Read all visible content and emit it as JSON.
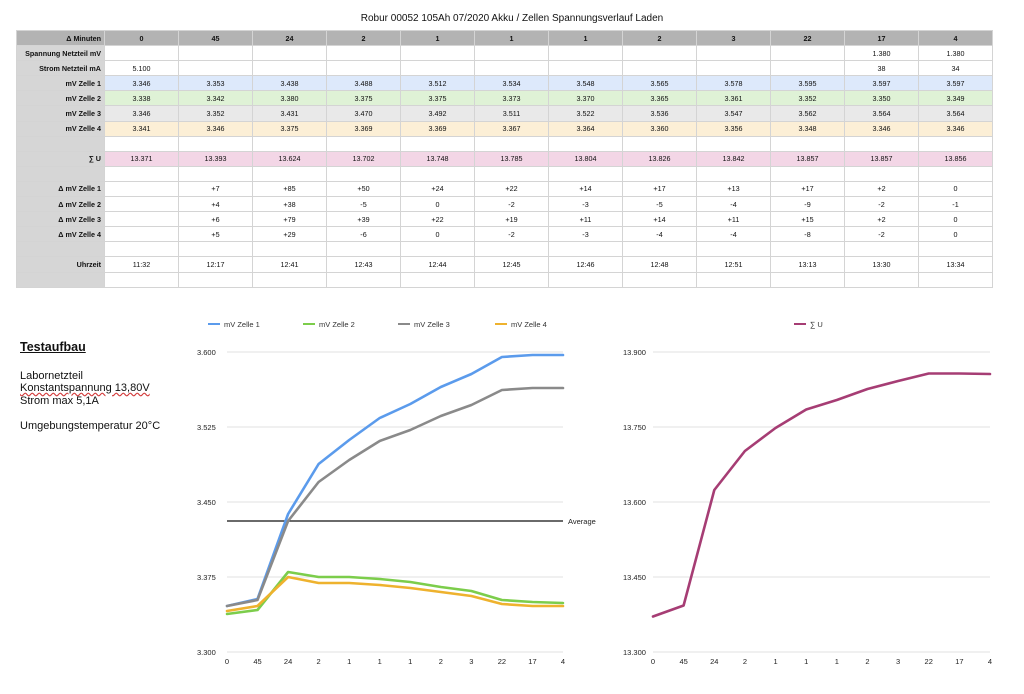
{
  "title": "Robur 00052 105Ah 07/2020 Akku / Zellen Spannungsverlauf Laden",
  "table": {
    "header_label": "Δ Minuten",
    "columns": [
      "0",
      "45",
      "24",
      "2",
      "1",
      "1",
      "1",
      "2",
      "3",
      "22",
      "17",
      "4"
    ],
    "rows": [
      {
        "label": "Spannung Netzteil mV",
        "cls": "",
        "cells": [
          "",
          "",
          "",
          "",
          "",
          "",
          "",
          "",
          "",
          "",
          "1.380",
          "1.380"
        ]
      },
      {
        "label": "Strom Netzteil mA",
        "cls": "",
        "cells": [
          "5.100",
          "",
          "",
          "",
          "",
          "",
          "",
          "",
          "",
          "",
          "38",
          "34"
        ]
      },
      {
        "label": "mV Zelle 1",
        "cls": "z1",
        "cells": [
          "3.346",
          "3.353",
          "3.438",
          "3.488",
          "3.512",
          "3.534",
          "3.548",
          "3.565",
          "3.578",
          "3.595",
          "3.597",
          "3.597"
        ]
      },
      {
        "label": "mV Zelle 2",
        "cls": "z2",
        "cells": [
          "3.338",
          "3.342",
          "3.380",
          "3.375",
          "3.375",
          "3.373",
          "3.370",
          "3.365",
          "3.361",
          "3.352",
          "3.350",
          "3.349"
        ]
      },
      {
        "label": "mV Zelle 3",
        "cls": "z3",
        "cells": [
          "3.346",
          "3.352",
          "3.431",
          "3.470",
          "3.492",
          "3.511",
          "3.522",
          "3.536",
          "3.547",
          "3.562",
          "3.564",
          "3.564"
        ]
      },
      {
        "label": "mV Zelle 4",
        "cls": "z4",
        "cells": [
          "3.341",
          "3.346",
          "3.375",
          "3.369",
          "3.369",
          "3.367",
          "3.364",
          "3.360",
          "3.356",
          "3.348",
          "3.346",
          "3.346"
        ]
      },
      {
        "label": "",
        "cls": "blank",
        "cells": [
          "",
          "",
          "",
          "",
          "",
          "",
          "",
          "",
          "",
          "",
          "",
          ""
        ]
      },
      {
        "label": "∑ U",
        "cls": "sum",
        "cells": [
          "13.371",
          "13.393",
          "13.624",
          "13.702",
          "13.748",
          "13.785",
          "13.804",
          "13.826",
          "13.842",
          "13.857",
          "13.857",
          "13.856"
        ]
      },
      {
        "label": "",
        "cls": "blank",
        "cells": [
          "",
          "",
          "",
          "",
          "",
          "",
          "",
          "",
          "",
          "",
          "",
          ""
        ]
      },
      {
        "label": "Δ mV Zelle 1",
        "cls": "",
        "cells": [
          "",
          "+7",
          "+85",
          "+50",
          "+24",
          "+22",
          "+14",
          "+17",
          "+13",
          "+17",
          "+2",
          "0"
        ]
      },
      {
        "label": "Δ mV Zelle 2",
        "cls": "",
        "cells": [
          "",
          "+4",
          "+38",
          "-5",
          "0",
          "-2",
          "-3",
          "-5",
          "-4",
          "-9",
          "-2",
          "-1"
        ]
      },
      {
        "label": "Δ mV Zelle 3",
        "cls": "",
        "cells": [
          "",
          "+6",
          "+79",
          "+39",
          "+22",
          "+19",
          "+11",
          "+14",
          "+11",
          "+15",
          "+2",
          "0"
        ]
      },
      {
        "label": "Δ mV Zelle 4",
        "cls": "",
        "cells": [
          "",
          "+5",
          "+29",
          "-6",
          "0",
          "-2",
          "-3",
          "-4",
          "-4",
          "-8",
          "-2",
          "0"
        ]
      },
      {
        "label": "",
        "cls": "blank",
        "cells": [
          "",
          "",
          "",
          "",
          "",
          "",
          "",
          "",
          "",
          "",
          "",
          ""
        ]
      },
      {
        "label": "Uhrzeit",
        "cls": "",
        "cells": [
          "11:32",
          "12:17",
          "12:41",
          "12:43",
          "12:44",
          "12:45",
          "12:46",
          "12:48",
          "12:51",
          "13:13",
          "13:30",
          "13:34"
        ]
      },
      {
        "label": "",
        "cls": "blank",
        "cells": [
          "",
          "",
          "",
          "",
          "",
          "",
          "",
          "",
          "",
          "",
          "",
          ""
        ]
      }
    ]
  },
  "setup": {
    "heading": "Testaufbau",
    "line1": "Labornetzteil",
    "line2": "Konstantspannung 13,80V",
    "line3": "Strom max 5,1A",
    "line4": "Umgebungstemperatur 20°C"
  },
  "chart_data": [
    {
      "type": "line",
      "categories": [
        "0",
        "45",
        "24",
        "2",
        "1",
        "1",
        "1",
        "2",
        "3",
        "22",
        "17",
        "4"
      ],
      "series": [
        {
          "name": "mV Zelle 1",
          "color": "#5b9bec",
          "values": [
            3.346,
            3.353,
            3.438,
            3.488,
            3.512,
            3.534,
            3.548,
            3.565,
            3.578,
            3.595,
            3.597,
            3.597
          ]
        },
        {
          "name": "mV Zelle 2",
          "color": "#7ccd4b",
          "values": [
            3.338,
            3.342,
            3.38,
            3.375,
            3.375,
            3.373,
            3.37,
            3.365,
            3.361,
            3.352,
            3.35,
            3.349
          ]
        },
        {
          "name": "mV Zelle 3",
          "color": "#8a8a8a",
          "values": [
            3.346,
            3.352,
            3.431,
            3.47,
            3.492,
            3.511,
            3.522,
            3.536,
            3.547,
            3.562,
            3.564,
            3.564
          ]
        },
        {
          "name": "mV Zelle 4",
          "color": "#eeb22e",
          "values": [
            3.341,
            3.346,
            3.375,
            3.369,
            3.369,
            3.367,
            3.364,
            3.36,
            3.356,
            3.348,
            3.346,
            3.346
          ]
        }
      ],
      "reference_line": {
        "label": "Average",
        "value": 3.431
      },
      "ylim": [
        3.3,
        3.6
      ],
      "yticks": [
        "3.600",
        "3.525",
        "3.450",
        "3.375",
        "3.300"
      ],
      "grid": true,
      "legend": "top"
    },
    {
      "type": "line",
      "categories": [
        "0",
        "45",
        "24",
        "2",
        "1",
        "1",
        "1",
        "2",
        "3",
        "22",
        "17",
        "4"
      ],
      "series": [
        {
          "name": "∑ U",
          "color": "#a63d74",
          "values": [
            13.371,
            13.393,
            13.624,
            13.702,
            13.748,
            13.785,
            13.804,
            13.826,
            13.842,
            13.857,
            13.857,
            13.856
          ]
        }
      ],
      "ylim": [
        13.3,
        13.9
      ],
      "yticks": [
        "13.900",
        "13.750",
        "13.600",
        "13.450",
        "13.300"
      ],
      "grid": true,
      "legend": "top"
    }
  ]
}
